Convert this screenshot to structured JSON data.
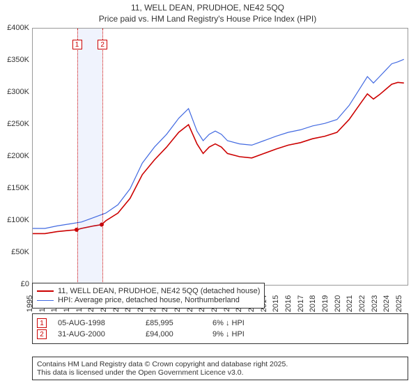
{
  "title": "11, WELL DEAN, PRUDHOE, NE42 5QQ",
  "subtitle": "Price paid vs. HM Land Registry's House Price Index (HPI)",
  "chart": {
    "type": "line",
    "xlim": [
      1995,
      2025.8
    ],
    "ylim": [
      0,
      400000
    ],
    "ytick_step": 50000,
    "yticks_labels": [
      "£0",
      "£50K",
      "£100K",
      "£150K",
      "£200K",
      "£250K",
      "£300K",
      "£350K",
      "£400K"
    ],
    "xticks": [
      1995,
      1996,
      1997,
      1998,
      1999,
      2000,
      2001,
      2002,
      2003,
      2004,
      2005,
      2006,
      2007,
      2008,
      2009,
      2010,
      2011,
      2012,
      2013,
      2014,
      2015,
      2016,
      2017,
      2018,
      2019,
      2020,
      2021,
      2022,
      2023,
      2024,
      2025
    ],
    "background_color": "#ffffff",
    "border_color": "#999999",
    "shade_color": "rgba(65,105,225,0.08)",
    "sale_marker_color": "#cc0000",
    "series": [
      {
        "name": "hpi",
        "color": "#4169e1",
        "width": 1.2,
        "values": [
          [
            1995,
            88000
          ],
          [
            1996,
            88000
          ],
          [
            1997,
            92000
          ],
          [
            1998,
            95000
          ],
          [
            1999,
            98000
          ],
          [
            2000,
            105000
          ],
          [
            2001,
            112000
          ],
          [
            2002,
            125000
          ],
          [
            2003,
            150000
          ],
          [
            2004,
            190000
          ],
          [
            2005,
            215000
          ],
          [
            2006,
            235000
          ],
          [
            2007,
            260000
          ],
          [
            2007.8,
            275000
          ],
          [
            2008.5,
            240000
          ],
          [
            2009,
            225000
          ],
          [
            2009.5,
            235000
          ],
          [
            2010,
            240000
          ],
          [
            2010.5,
            235000
          ],
          [
            2011,
            225000
          ],
          [
            2012,
            220000
          ],
          [
            2013,
            218000
          ],
          [
            2014,
            225000
          ],
          [
            2015,
            232000
          ],
          [
            2016,
            238000
          ],
          [
            2017,
            242000
          ],
          [
            2018,
            248000
          ],
          [
            2019,
            252000
          ],
          [
            2020,
            258000
          ],
          [
            2021,
            280000
          ],
          [
            2022,
            310000
          ],
          [
            2022.5,
            325000
          ],
          [
            2023,
            315000
          ],
          [
            2023.5,
            325000
          ],
          [
            2024,
            335000
          ],
          [
            2024.5,
            345000
          ],
          [
            2025,
            348000
          ],
          [
            2025.5,
            352000
          ]
        ]
      },
      {
        "name": "property",
        "color": "#cc0000",
        "width": 1.6,
        "values": [
          [
            1995,
            80000
          ],
          [
            1996,
            80000
          ],
          [
            1997,
            83000
          ],
          [
            1998,
            85000
          ],
          [
            1998.6,
            85995
          ],
          [
            1999,
            88000
          ],
          [
            2000,
            92000
          ],
          [
            2000.67,
            94000
          ],
          [
            2001,
            100000
          ],
          [
            2002,
            112000
          ],
          [
            2003,
            135000
          ],
          [
            2004,
            172000
          ],
          [
            2005,
            195000
          ],
          [
            2006,
            215000
          ],
          [
            2007,
            238000
          ],
          [
            2007.8,
            250000
          ],
          [
            2008.5,
            220000
          ],
          [
            2009,
            205000
          ],
          [
            2009.5,
            215000
          ],
          [
            2010,
            220000
          ],
          [
            2010.5,
            215000
          ],
          [
            2011,
            205000
          ],
          [
            2012,
            200000
          ],
          [
            2013,
            198000
          ],
          [
            2014,
            205000
          ],
          [
            2015,
            212000
          ],
          [
            2016,
            218000
          ],
          [
            2017,
            222000
          ],
          [
            2018,
            228000
          ],
          [
            2019,
            232000
          ],
          [
            2020,
            238000
          ],
          [
            2021,
            258000
          ],
          [
            2022,
            285000
          ],
          [
            2022.5,
            298000
          ],
          [
            2023,
            290000
          ],
          [
            2023.5,
            297000
          ],
          [
            2024,
            305000
          ],
          [
            2024.5,
            313000
          ],
          [
            2025,
            316000
          ],
          [
            2025.5,
            315000
          ]
        ]
      }
    ],
    "sales": [
      {
        "n": "1",
        "x": 1998.6
      },
      {
        "n": "2",
        "x": 2000.67
      }
    ]
  },
  "legend": {
    "row1": {
      "label": "11, WELL DEAN, PRUDHOE, NE42 5QQ (detached house)",
      "color": "#cc0000"
    },
    "row2": {
      "label": "HPI: Average price, detached house, Northumberland",
      "color": "#4169e1"
    }
  },
  "sales_table": [
    {
      "n": "1",
      "date": "05-AUG-1998",
      "price": "£85,995",
      "delta": "6% ↓ HPI"
    },
    {
      "n": "2",
      "date": "31-AUG-2000",
      "price": "£94,000",
      "delta": "9% ↓ HPI"
    }
  ],
  "footer": {
    "line1": "Contains HM Land Registry data © Crown copyright and database right 2025.",
    "line2": "This data is licensed under the Open Government Licence v3.0."
  }
}
